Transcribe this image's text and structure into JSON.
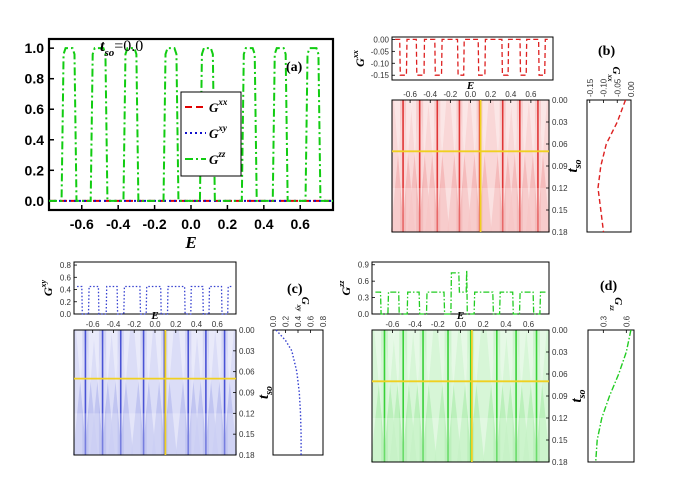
{
  "chart_data": [
    {
      "id": "a",
      "type": "line",
      "panel_label": "(a)",
      "annotation_main": "t",
      "annotation_sub": "so",
      "annotation_value": "=0.0",
      "xlabel": "E",
      "xlim": [
        -0.78,
        0.78
      ],
      "ylim": [
        -0.06,
        1.06
      ],
      "xticks": [
        -0.6,
        -0.4,
        -0.2,
        0.0,
        0.2,
        0.4,
        0.6
      ],
      "xtick_labels": [
        "-0.6",
        "-0.4",
        "-0.2",
        "0.0",
        "0.2",
        "0.4",
        "0.6"
      ],
      "yticks": [
        0.0,
        0.2,
        0.4,
        0.6,
        0.8,
        1.0
      ],
      "ytick_labels": [
        "0.0",
        "0.2",
        "0.4",
        "0.6",
        "0.8",
        "1.0"
      ],
      "series": [
        {
          "name": "G",
          "super": "xx",
          "color": "#e00000",
          "dash": "dashed",
          "values_constant": 0.0
        },
        {
          "name": "G",
          "super": "xy",
          "color": "#1010cc",
          "dash": "dotted",
          "values_constant": 0.0
        },
        {
          "name": "G",
          "super": "zz",
          "color": "#11cc11",
          "dash": "dashdot",
          "plateaus": [
            [
              -0.7,
              -0.64
            ],
            [
              -0.54,
              -0.47
            ],
            [
              -0.36,
              -0.3
            ],
            [
              -0.14,
              -0.08
            ],
            [
              0.06,
              0.12
            ],
            [
              0.29,
              0.35
            ],
            [
              0.46,
              0.52
            ],
            [
              0.64,
              0.7
            ]
          ],
          "plateau_value": 1.0
        }
      ]
    },
    {
      "id": "b",
      "type": "heatmap",
      "panel_label": "(b)",
      "color": "#dd2020",
      "top_ylabel": "G",
      "top_ylabel_super": "xx",
      "top_yticks": [
        0.0,
        -0.05,
        -0.1,
        -0.15
      ],
      "top_ytick_labels": [
        "0.00",
        "-0.05",
        "-0.10",
        "-0.15"
      ],
      "top_ylim": [
        -0.17,
        0.01
      ],
      "top_low": -0.15,
      "top_high": 0.0,
      "top_dips": [
        [
          -0.7,
          -0.64
        ],
        [
          -0.54,
          -0.47
        ],
        [
          -0.36,
          -0.3
        ],
        [
          -0.14,
          -0.08
        ],
        [
          0.06,
          0.12
        ],
        [
          0.29,
          0.35
        ],
        [
          0.46,
          0.52
        ],
        [
          0.64,
          0.7
        ]
      ],
      "xlabel": "E",
      "xticks": [
        -0.6,
        -0.4,
        -0.2,
        0.0,
        0.2,
        0.4,
        0.6
      ],
      "xtick_labels": [
        "-0.6",
        "-0.4",
        "-0.2",
        "0.0",
        "0.2",
        "0.4",
        "0.6"
      ],
      "ylabel": "t",
      "ylabel_sub": "so",
      "yticks": [
        0.0,
        0.03,
        0.06,
        0.09,
        0.12,
        0.15,
        0.18
      ],
      "ytick_labels": [
        "0.00",
        "0.03",
        "0.06",
        "0.09",
        "0.12",
        "0.15",
        "0.18"
      ],
      "cursor_E": 0.1,
      "cursor_tso": 0.07,
      "side_xlabel": "G",
      "side_xlabel_super": "xx",
      "side_xticks": [
        -0.15,
        -0.1,
        -0.05,
        0.0
      ],
      "side_xtick_labels": [
        "-0.15",
        "-0.10",
        "-0.05",
        "0.00"
      ],
      "side_xlim": [
        -0.16,
        0.0
      ],
      "side_curve": [
        [
          0.0,
          -0.02
        ],
        [
          0.03,
          -0.05
        ],
        [
          0.06,
          -0.09
        ],
        [
          0.09,
          -0.11
        ],
        [
          0.12,
          -0.12
        ],
        [
          0.15,
          -0.11
        ],
        [
          0.18,
          -0.1
        ]
      ]
    },
    {
      "id": "c",
      "type": "heatmap",
      "panel_label": "(c)",
      "color": "#3540d0",
      "top_ylabel": "G",
      "top_ylabel_super": "xy",
      "top_yticks": [
        0.0,
        0.2,
        0.4,
        0.6,
        0.8
      ],
      "top_ytick_labels": [
        "0.0",
        "0.2",
        "0.4",
        "0.6",
        "0.8"
      ],
      "top_ylim": [
        0.0,
        0.85
      ],
      "top_low": 0.0,
      "top_high": 0.45,
      "top_dips": [
        [
          -0.7,
          -0.64
        ],
        [
          -0.54,
          -0.47
        ],
        [
          -0.36,
          -0.3
        ],
        [
          -0.14,
          -0.08
        ],
        [
          0.06,
          0.12
        ],
        [
          0.29,
          0.35
        ],
        [
          0.46,
          0.52
        ],
        [
          0.64,
          0.7
        ]
      ],
      "xlabel": "E",
      "xticks": [
        -0.6,
        -0.4,
        -0.2,
        0.0,
        0.2,
        0.4,
        0.6
      ],
      "xtick_labels": [
        "-0.6",
        "-0.4",
        "-0.2",
        "0.0",
        "0.2",
        "0.4",
        "0.6"
      ],
      "ylabel": "t",
      "ylabel_sub": "so",
      "yticks": [
        0.0,
        0.03,
        0.06,
        0.09,
        0.12,
        0.15,
        0.18
      ],
      "ytick_labels": [
        "0.00",
        "0.03",
        "0.06",
        "0.09",
        "0.12",
        "0.15",
        "0.18"
      ],
      "cursor_E": 0.1,
      "cursor_tso": 0.07,
      "side_xlabel": "G",
      "side_xlabel_super": "xy",
      "side_xticks": [
        0.0,
        0.2,
        0.4,
        0.6,
        0.8
      ],
      "side_xtick_labels": [
        "0.0",
        "0.2",
        "0.4",
        "0.6",
        "0.8"
      ],
      "side_xlim": [
        0.0,
        0.8
      ],
      "side_curve": [
        [
          0.0,
          0.05
        ],
        [
          0.015,
          0.2
        ],
        [
          0.03,
          0.3
        ],
        [
          0.06,
          0.38
        ],
        [
          0.09,
          0.42
        ],
        [
          0.12,
          0.44
        ],
        [
          0.15,
          0.45
        ],
        [
          0.18,
          0.45
        ]
      ]
    },
    {
      "id": "d",
      "type": "heatmap",
      "panel_label": "(d)",
      "color": "#22cc22",
      "top_ylabel": "G",
      "top_ylabel_super": "zz",
      "top_yticks": [
        0.0,
        0.3,
        0.6,
        0.9
      ],
      "top_ytick_labels": [
        "0.0",
        "0.3",
        "0.6",
        "0.9"
      ],
      "top_ylim": [
        0.0,
        0.95
      ],
      "top_low": 0.0,
      "top_high": 0.4,
      "top_dips": [
        [
          -0.7,
          -0.64
        ],
        [
          -0.54,
          -0.47
        ],
        [
          -0.36,
          -0.3
        ],
        [
          -0.14,
          -0.08
        ],
        [
          0.06,
          0.12
        ],
        [
          0.29,
          0.35
        ],
        [
          0.46,
          0.52
        ],
        [
          0.64,
          0.7
        ]
      ],
      "top_peaks": [
        [
          -0.05,
          0.75
        ],
        [
          0.09,
          0.8
        ]
      ],
      "xlabel": "E",
      "xticks": [
        -0.6,
        -0.4,
        -0.2,
        0.0,
        0.2,
        0.4,
        0.6
      ],
      "xtick_labels": [
        "-0.6",
        "-0.4",
        "-0.2",
        "0.0",
        "0.2",
        "0.4",
        "0.6"
      ],
      "ylabel": "t",
      "ylabel_sub": "so",
      "yticks": [
        0.0,
        0.03,
        0.06,
        0.09,
        0.12,
        0.15,
        0.18
      ],
      "ytick_labels": [
        "0.00",
        "0.03",
        "0.06",
        "0.09",
        "0.12",
        "0.15",
        "0.18"
      ],
      "cursor_E": 0.1,
      "cursor_tso": 0.07,
      "side_xlabel": "G",
      "side_xlabel_super": "zz",
      "side_xticks": [
        0.3,
        0.6
      ],
      "side_xtick_labels": [
        "0.3",
        "0.6"
      ],
      "side_xlim": [
        0.1,
        0.7
      ],
      "side_curve": [
        [
          0.0,
          0.66
        ],
        [
          0.03,
          0.6
        ],
        [
          0.06,
          0.5
        ],
        [
          0.09,
          0.38
        ],
        [
          0.12,
          0.28
        ],
        [
          0.15,
          0.22
        ],
        [
          0.18,
          0.2
        ]
      ]
    }
  ]
}
